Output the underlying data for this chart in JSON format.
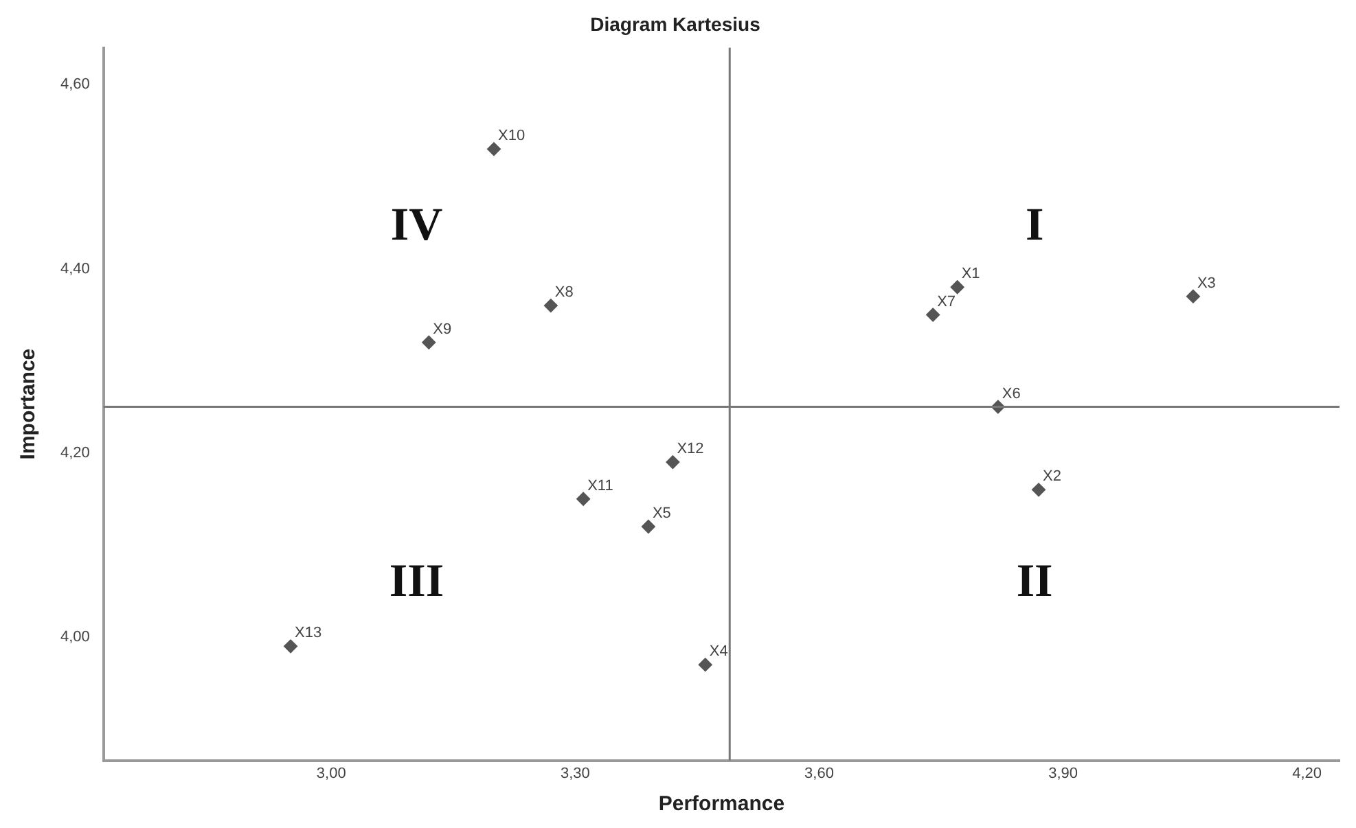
{
  "chart_data": {
    "type": "scatter",
    "title": "Diagram Kartesius",
    "xlabel": "Performance",
    "ylabel": "Importance",
    "marker": "diamond",
    "grid": false,
    "legend": false,
    "xlim": [
      2.72,
      4.24
    ],
    "ylim": [
      3.866,
      4.64
    ],
    "xticks": [
      {
        "value": 3.0,
        "label": "3,00"
      },
      {
        "value": 3.3,
        "label": "3,30"
      },
      {
        "value": 3.6,
        "label": "3,60"
      },
      {
        "value": 3.9,
        "label": "3,90"
      },
      {
        "value": 4.2,
        "label": "4,20"
      }
    ],
    "yticks": [
      {
        "value": 4.0,
        "label": "4,00"
      },
      {
        "value": 4.2,
        "label": "4,20"
      },
      {
        "value": 4.4,
        "label": "4,40"
      },
      {
        "value": 4.6,
        "label": "4,60"
      }
    ],
    "series": [
      {
        "name": "X1",
        "color": "#555555",
        "x": [
          3.77
        ],
        "values": [
          4.38
        ]
      },
      {
        "name": "X2",
        "color": "#555555",
        "x": [
          3.87
        ],
        "values": [
          4.16
        ]
      },
      {
        "name": "X3",
        "color": "#555555",
        "x": [
          4.06
        ],
        "values": [
          4.37
        ]
      },
      {
        "name": "X4",
        "color": "#555555",
        "x": [
          3.46
        ],
        "values": [
          3.97
        ]
      },
      {
        "name": "X5",
        "color": "#555555",
        "x": [
          3.39
        ],
        "values": [
          4.12
        ]
      },
      {
        "name": "X6",
        "color": "#555555",
        "x": [
          3.82
        ],
        "values": [
          4.25
        ]
      },
      {
        "name": "X7",
        "color": "#555555",
        "x": [
          3.74
        ],
        "values": [
          4.35
        ]
      },
      {
        "name": "X8",
        "color": "#555555",
        "x": [
          3.27
        ],
        "values": [
          4.36
        ]
      },
      {
        "name": "X9",
        "color": "#555555",
        "x": [
          3.12
        ],
        "values": [
          4.32
        ]
      },
      {
        "name": "X10",
        "color": "#555555",
        "x": [
          3.2
        ],
        "values": [
          4.53
        ]
      },
      {
        "name": "X11",
        "color": "#555555",
        "x": [
          3.31
        ],
        "values": [
          4.15
        ]
      },
      {
        "name": "X12",
        "color": "#555555",
        "x": [
          3.42
        ],
        "values": [
          4.19
        ]
      },
      {
        "name": "X13",
        "color": "#555555",
        "x": [
          2.95
        ],
        "values": [
          3.99
        ]
      }
    ],
    "ref_lines": [
      {
        "axis": "x",
        "value": 3.49,
        "color": "#777777"
      },
      {
        "axis": "y",
        "value": 4.25,
        "color": "#777777"
      }
    ],
    "annotations": [
      "I",
      "II",
      "III",
      "IV"
    ]
  }
}
